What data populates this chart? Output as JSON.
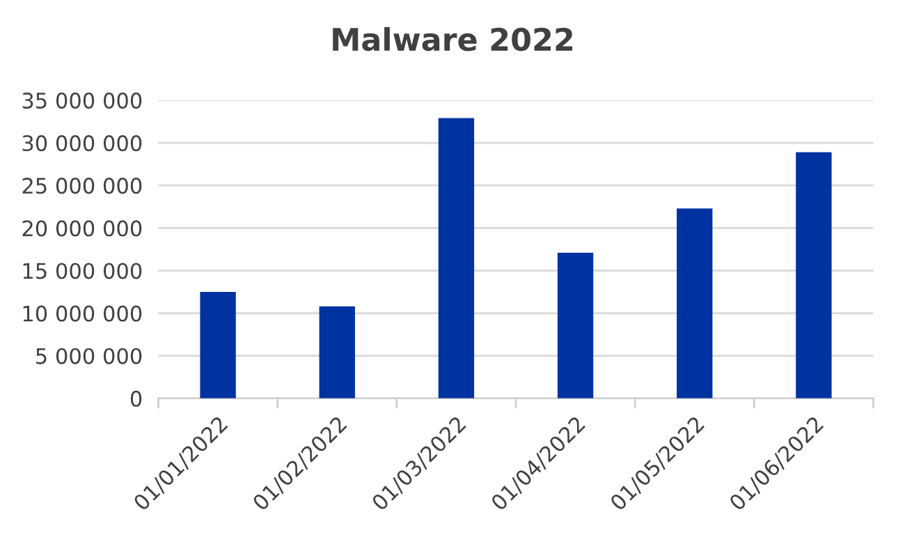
{
  "chart_data": {
    "type": "bar",
    "title": "Malware 2022",
    "categories": [
      "01/01/2022",
      "01/02/2022",
      "01/03/2022",
      "01/04/2022",
      "01/05/2022",
      "01/06/2022"
    ],
    "values": [
      12500000,
      10800000,
      32900000,
      17100000,
      22300000,
      28900000
    ],
    "color": "#0033a0",
    "ylim": [
      0,
      35000000
    ],
    "yticks": [
      {
        "value": 0,
        "label": "0"
      },
      {
        "value": 5000000,
        "label": "5 000 000"
      },
      {
        "value": 10000000,
        "label": "10 000 000"
      },
      {
        "value": 15000000,
        "label": "15 000 000"
      },
      {
        "value": 20000000,
        "label": "20 000 000"
      },
      {
        "value": 25000000,
        "label": "25 000 000"
      },
      {
        "value": 30000000,
        "label": "30 000 000"
      },
      {
        "value": 35000000,
        "label": "35 000 000"
      }
    ],
    "grid": "y"
  }
}
